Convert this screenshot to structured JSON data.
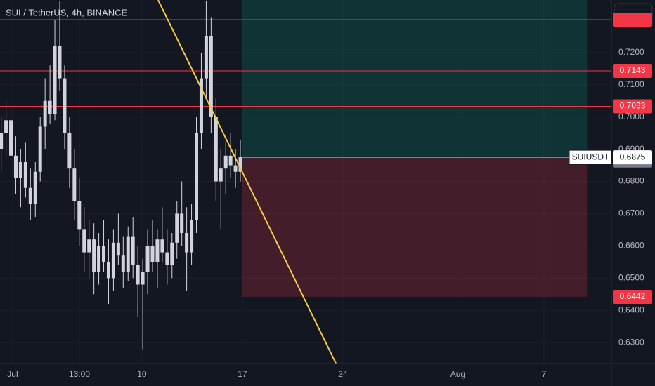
{
  "chart_data": {
    "type": "candlestick",
    "title": "SUI / TetherUS, 4h, BINANCE",
    "candle_color": "#d1d4dc",
    "x": [
      -0.8,
      -0.46,
      -0.12,
      0.22,
      0.56,
      0.9,
      1.24,
      1.58,
      1.92,
      2.26,
      2.6,
      2.94,
      3.28,
      3.62,
      3.96,
      4.3,
      4.64,
      4.98,
      5.32,
      5.66,
      6.0,
      6.34,
      6.68,
      7.02,
      7.36,
      7.7,
      8.04,
      8.38,
      8.72,
      9.06,
      9.4,
      9.74,
      10.08,
      10.42,
      10.76,
      11.1,
      11.44,
      11.78,
      12.12,
      12.46,
      12.8,
      13.14,
      13.48,
      13.82,
      14.16,
      14.5,
      14.84,
      15.18,
      15.52,
      15.86
    ],
    "open": [
      0.69,
      0.695,
      0.699,
      0.688,
      0.681,
      0.686,
      0.678,
      0.673,
      0.683,
      0.697,
      0.705,
      0.701,
      0.722,
      0.712,
      0.695,
      0.684,
      0.674,
      0.665,
      0.658,
      0.662,
      0.652,
      0.66,
      0.655,
      0.65,
      0.661,
      0.657,
      0.652,
      0.663,
      0.654,
      0.648,
      0.652,
      0.66,
      0.655,
      0.662,
      0.658,
      0.654,
      0.661,
      0.67,
      0.664,
      0.658,
      0.668,
      0.695,
      0.712,
      0.725,
      0.7,
      0.68,
      0.684,
      0.688,
      0.685,
      0.683
    ],
    "high": [
      0.7,
      0.705,
      0.702,
      0.694,
      0.69,
      0.692,
      0.684,
      0.686,
      0.7,
      0.712,
      0.716,
      0.73,
      0.736,
      0.716,
      0.7,
      0.69,
      0.681,
      0.672,
      0.668,
      0.667,
      0.664,
      0.668,
      0.662,
      0.665,
      0.67,
      0.663,
      0.666,
      0.669,
      0.66,
      0.656,
      0.665,
      0.668,
      0.665,
      0.672,
      0.665,
      0.664,
      0.674,
      0.68,
      0.672,
      0.673,
      0.7,
      0.72,
      0.736,
      0.731,
      0.706,
      0.69,
      0.692,
      0.695,
      0.69,
      0.693
    ],
    "low": [
      0.683,
      0.688,
      0.684,
      0.676,
      0.672,
      0.675,
      0.668,
      0.669,
      0.68,
      0.69,
      0.698,
      0.699,
      0.708,
      0.69,
      0.678,
      0.668,
      0.66,
      0.652,
      0.65,
      0.645,
      0.648,
      0.652,
      0.642,
      0.646,
      0.654,
      0.647,
      0.649,
      0.65,
      0.638,
      0.628,
      0.645,
      0.652,
      0.647,
      0.655,
      0.648,
      0.65,
      0.656,
      0.66,
      0.646,
      0.654,
      0.664,
      0.69,
      0.706,
      0.695,
      0.674,
      0.665,
      0.676,
      0.681,
      0.678,
      0.68
    ],
    "close": [
      0.695,
      0.699,
      0.688,
      0.681,
      0.686,
      0.678,
      0.673,
      0.683,
      0.697,
      0.705,
      0.701,
      0.722,
      0.712,
      0.695,
      0.684,
      0.674,
      0.665,
      0.658,
      0.662,
      0.652,
      0.66,
      0.655,
      0.65,
      0.661,
      0.657,
      0.652,
      0.663,
      0.654,
      0.648,
      0.652,
      0.66,
      0.655,
      0.662,
      0.658,
      0.654,
      0.661,
      0.67,
      0.664,
      0.658,
      0.668,
      0.695,
      0.712,
      0.725,
      0.7,
      0.68,
      0.684,
      0.688,
      0.685,
      0.683,
      0.6875
    ],
    "xlim": [
      -0.88,
      41.7
    ],
    "ylim": [
      0.6235,
      0.7363
    ],
    "yticks": [
      {
        "value": 0.63,
        "label": "0.6300"
      },
      {
        "value": 0.64,
        "label": "0.6400"
      },
      {
        "value": 0.65,
        "label": "0.6500"
      },
      {
        "value": 0.66,
        "label": "0.6600"
      },
      {
        "value": 0.67,
        "label": "0.6700"
      },
      {
        "value": 0.68,
        "label": "0.6800"
      },
      {
        "value": 0.69,
        "label": "0.6900"
      },
      {
        "value": 0.7,
        "label": "0.7000"
      },
      {
        "value": 0.71,
        "label": "0.7100"
      },
      {
        "value": 0.72,
        "label": "0.7200"
      }
    ],
    "xticks": [
      {
        "value": 0,
        "label": "Jul"
      },
      {
        "value": 4.65,
        "label": "13:00"
      },
      {
        "value": 9,
        "label": "10"
      },
      {
        "value": 16,
        "label": "17"
      },
      {
        "value": 23,
        "label": "24"
      },
      {
        "value": 31,
        "label": "Aug"
      },
      {
        "value": 37,
        "label": "7"
      }
    ],
    "grid": true,
    "hlines": [
      {
        "value": 0.7302,
        "color": "#f23645"
      },
      {
        "value": 0.7143,
        "color": "#f23645"
      },
      {
        "value": 0.7033,
        "color": "#f23645"
      }
    ],
    "trendline": {
      "x": [
        10.13,
        22.52
      ],
      "y": [
        0.7363,
        0.6235
      ],
      "color": "#f7c948"
    },
    "position": {
      "x": [
        16,
        40
      ],
      "target": 0.7363,
      "entry": 0.6875,
      "stop": 0.6442
    },
    "last_price": {
      "symbol": "SUIUSDT",
      "value": 0.6875
    },
    "marker_price": 0.6865
  }
}
